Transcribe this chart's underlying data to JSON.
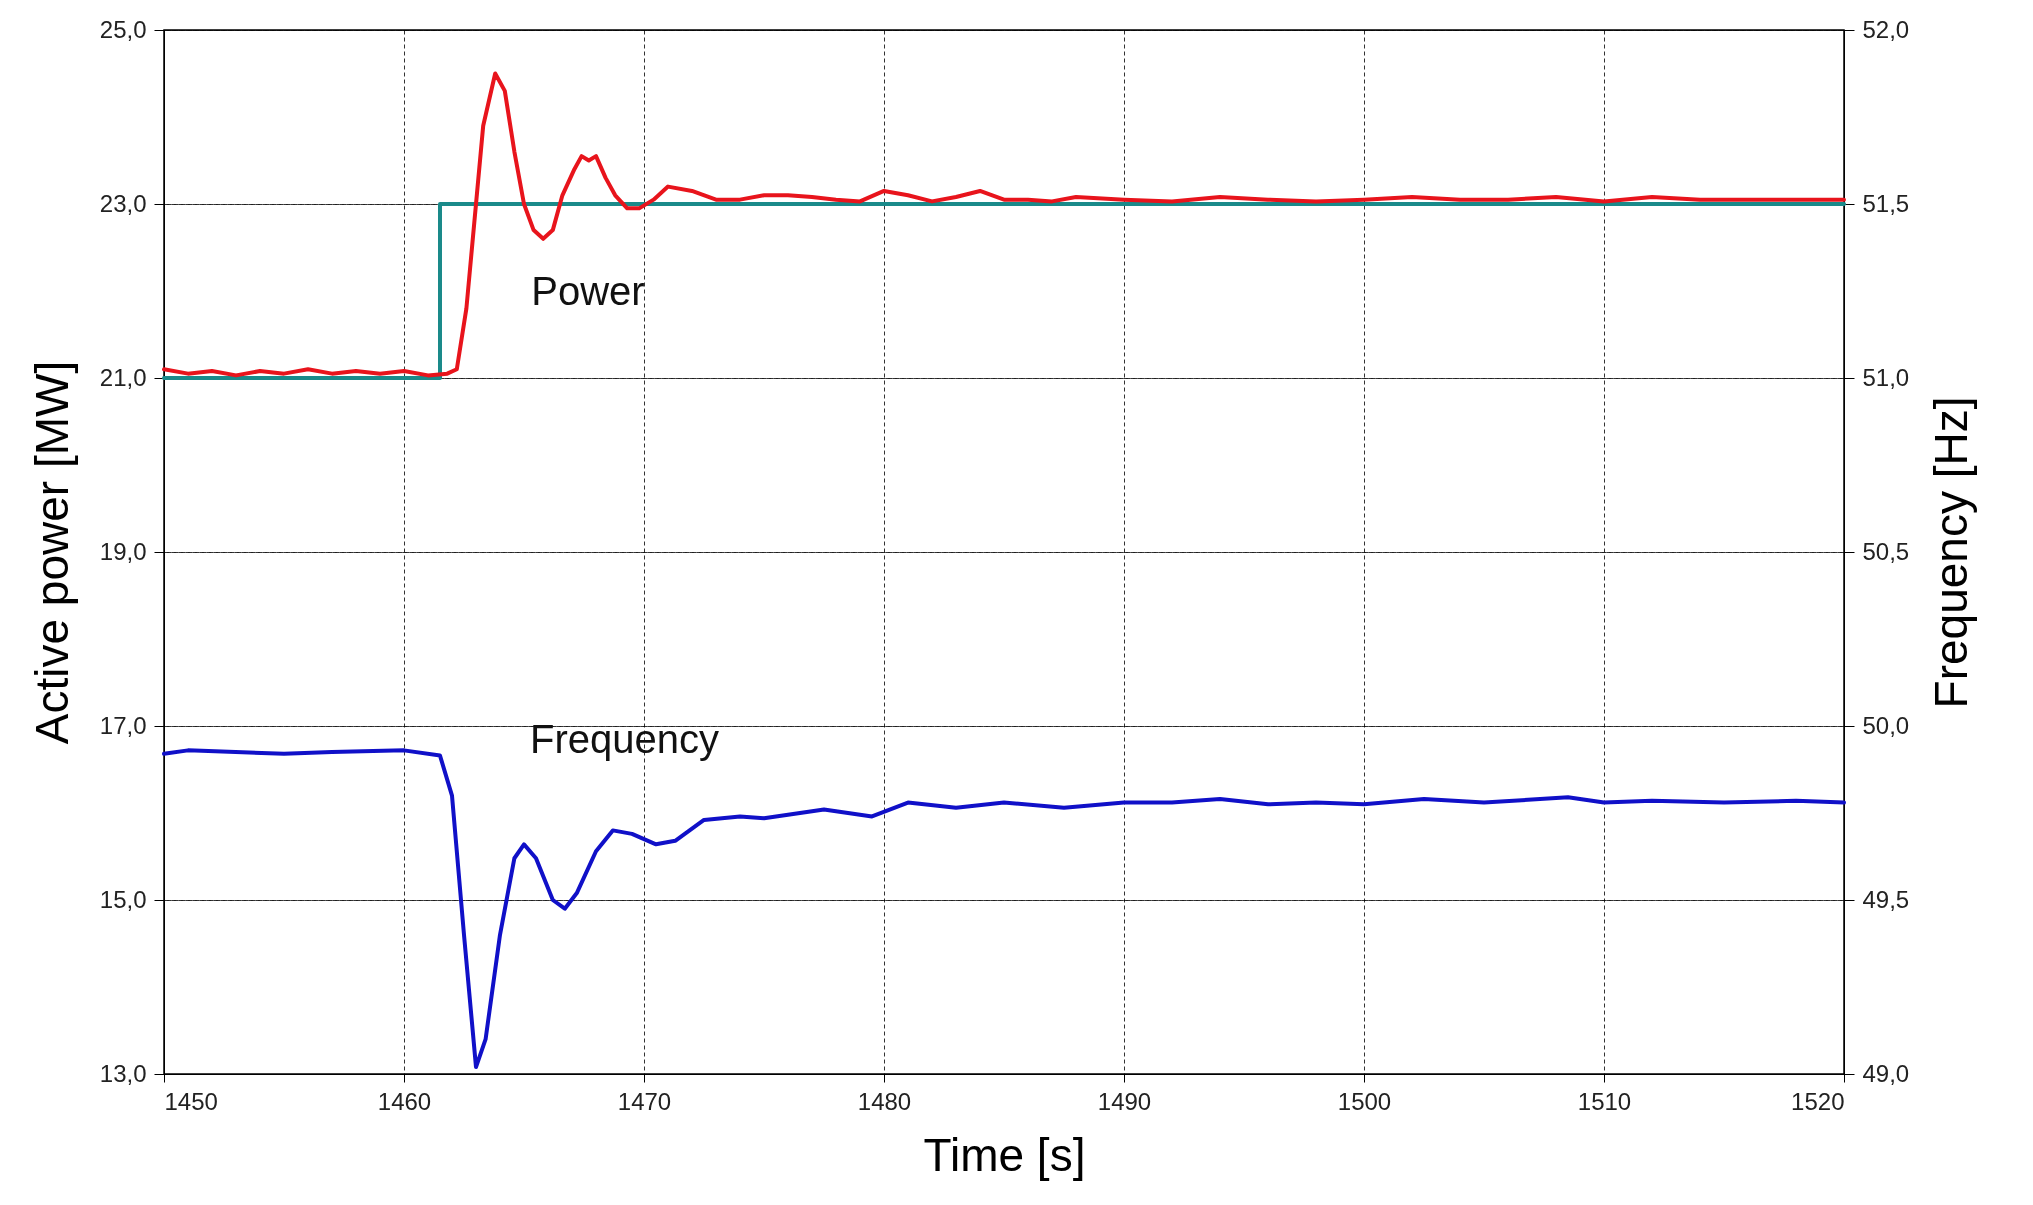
{
  "chart_data": {
    "type": "line",
    "xlabel": "Time [s]",
    "ylabel": "Active power [MW]",
    "y2label": "Frequency [Hz]",
    "xlim": [
      1450,
      1520
    ],
    "xticks": [
      1450,
      1460,
      1470,
      1480,
      1490,
      1500,
      1510,
      1520
    ],
    "ylim": [
      13,
      25
    ],
    "yticks": [
      {
        "value": 13,
        "label": "13,0"
      },
      {
        "value": 15,
        "label": "15,0"
      },
      {
        "value": 17,
        "label": "17,0"
      },
      {
        "value": 19,
        "label": "19,0"
      },
      {
        "value": 21,
        "label": "21,0"
      },
      {
        "value": 23,
        "label": "23,0"
      },
      {
        "value": 25,
        "label": "25,0"
      }
    ],
    "y2lim": [
      49,
      52
    ],
    "y2ticks": [
      {
        "value": 49,
        "label": "49,0"
      },
      {
        "value": 49.5,
        "label": "49,5"
      },
      {
        "value": 50,
        "label": "50,0"
      },
      {
        "value": 50.5,
        "label": "50,5"
      },
      {
        "value": 51,
        "label": "51,0"
      },
      {
        "value": 51.5,
        "label": "51,5"
      },
      {
        "value": 52,
        "label": "52,0"
      }
    ],
    "grid": true,
    "line_style": "solid",
    "marker": "none",
    "series": [
      {
        "type": "step",
        "color": "#1a8a8a",
        "x": [
          1450,
          1461.5,
          1520
        ],
        "values": [
          21,
          23,
          23
        ]
      },
      {
        "name": "Power",
        "color": "#e8141c",
        "x": [
          1450,
          1451,
          1452,
          1453,
          1454,
          1455,
          1456,
          1457,
          1458,
          1459,
          1460,
          1461,
          1461.8,
          1462.2,
          1462.6,
          1463.0,
          1463.3,
          1463.8,
          1464.2,
          1464.6,
          1465.0,
          1465.4,
          1465.8,
          1466.2,
          1466.6,
          1467.1,
          1467.4,
          1467.7,
          1468.0,
          1468.4,
          1468.8,
          1469.3,
          1469.8,
          1470.4,
          1471,
          1472,
          1473,
          1474,
          1475,
          1476,
          1477,
          1478,
          1479,
          1480,
          1481,
          1482,
          1483,
          1484,
          1485,
          1486,
          1487,
          1488,
          1490,
          1492,
          1494,
          1496,
          1498,
          1500,
          1502,
          1504,
          1506,
          1508,
          1510,
          1512,
          1514,
          1516,
          1518,
          1520
        ],
        "values": [
          21.1,
          21.05,
          21.08,
          21.03,
          21.08,
          21.05,
          21.1,
          21.05,
          21.08,
          21.05,
          21.08,
          21.03,
          21.05,
          21.1,
          21.8,
          23.0,
          23.9,
          24.5,
          24.3,
          23.6,
          23.0,
          22.7,
          22.6,
          22.7,
          23.1,
          23.4,
          23.55,
          23.5,
          23.55,
          23.3,
          23.1,
          22.95,
          22.95,
          23.05,
          23.2,
          23.15,
          23.05,
          23.05,
          23.1,
          23.1,
          23.08,
          23.05,
          23.03,
          23.15,
          23.1,
          23.03,
          23.08,
          23.15,
          23.05,
          23.05,
          23.03,
          23.08,
          23.05,
          23.03,
          23.08,
          23.05,
          23.03,
          23.05,
          23.08,
          23.05,
          23.05,
          23.08,
          23.03,
          23.08,
          23.05,
          23.05,
          23.05,
          23.05
        ]
      },
      {
        "name": "Frequency",
        "axis": "y2",
        "color": "#1010c8",
        "x": [
          1450,
          1451,
          1455,
          1457,
          1460,
          1461.5,
          1462,
          1462.5,
          1463.0,
          1463.4,
          1464,
          1464.6,
          1465.0,
          1465.5,
          1466.2,
          1466.7,
          1467.2,
          1468,
          1468.7,
          1469.5,
          1470.5,
          1471.3,
          1472.5,
          1474,
          1475,
          1477.5,
          1479.5,
          1481,
          1483,
          1485,
          1487.5,
          1490,
          1492,
          1494,
          1496,
          1498,
          1500,
          1502.5,
          1505,
          1508.5,
          1510,
          1512,
          1515,
          1518,
          1520
        ],
        "values": [
          49.92,
          49.93,
          49.92,
          49.925,
          49.93,
          49.915,
          49.8,
          49.4,
          49.02,
          49.1,
          49.4,
          49.62,
          49.66,
          49.62,
          49.5,
          49.475,
          49.52,
          49.64,
          49.7,
          49.69,
          49.66,
          49.67,
          49.73,
          49.74,
          49.735,
          49.76,
          49.74,
          49.78,
          49.765,
          49.78,
          49.765,
          49.78,
          49.78,
          49.79,
          49.775,
          49.78,
          49.775,
          49.79,
          49.78,
          49.795,
          49.78,
          49.785,
          49.78,
          49.785,
          49.78
        ]
      }
    ]
  }
}
